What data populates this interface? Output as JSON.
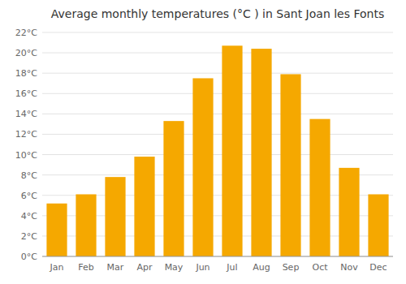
{
  "chart_data": {
    "type": "bar",
    "title": "Average monthly temperatures (°C ) in Sant Joan les Fonts",
    "categories": [
      "Jan",
      "Feb",
      "Mar",
      "Apr",
      "May",
      "Jun",
      "Jul",
      "Aug",
      "Sep",
      "Oct",
      "Nov",
      "Dec"
    ],
    "values": [
      5.2,
      6.1,
      7.8,
      9.8,
      13.3,
      17.5,
      20.7,
      20.4,
      17.9,
      13.5,
      8.7,
      6.1
    ],
    "color": "#F5A800",
    "ylim": [
      0,
      22
    ],
    "yticks": [
      {
        "value": 0,
        "label": "0°C"
      },
      {
        "value": 2,
        "label": "2°C"
      },
      {
        "value": 4,
        "label": "4°C"
      },
      {
        "value": 6,
        "label": "6°C"
      },
      {
        "value": 8,
        "label": "8°C"
      },
      {
        "value": 10,
        "label": "10°C"
      },
      {
        "value": 12,
        "label": "12°C"
      },
      {
        "value": 14,
        "label": "14°C"
      },
      {
        "value": 16,
        "label": "16°C"
      },
      {
        "value": 18,
        "label": "18°C"
      },
      {
        "value": 20,
        "label": "20°C"
      },
      {
        "value": 22,
        "label": "22°C"
      }
    ],
    "grid": true
  }
}
